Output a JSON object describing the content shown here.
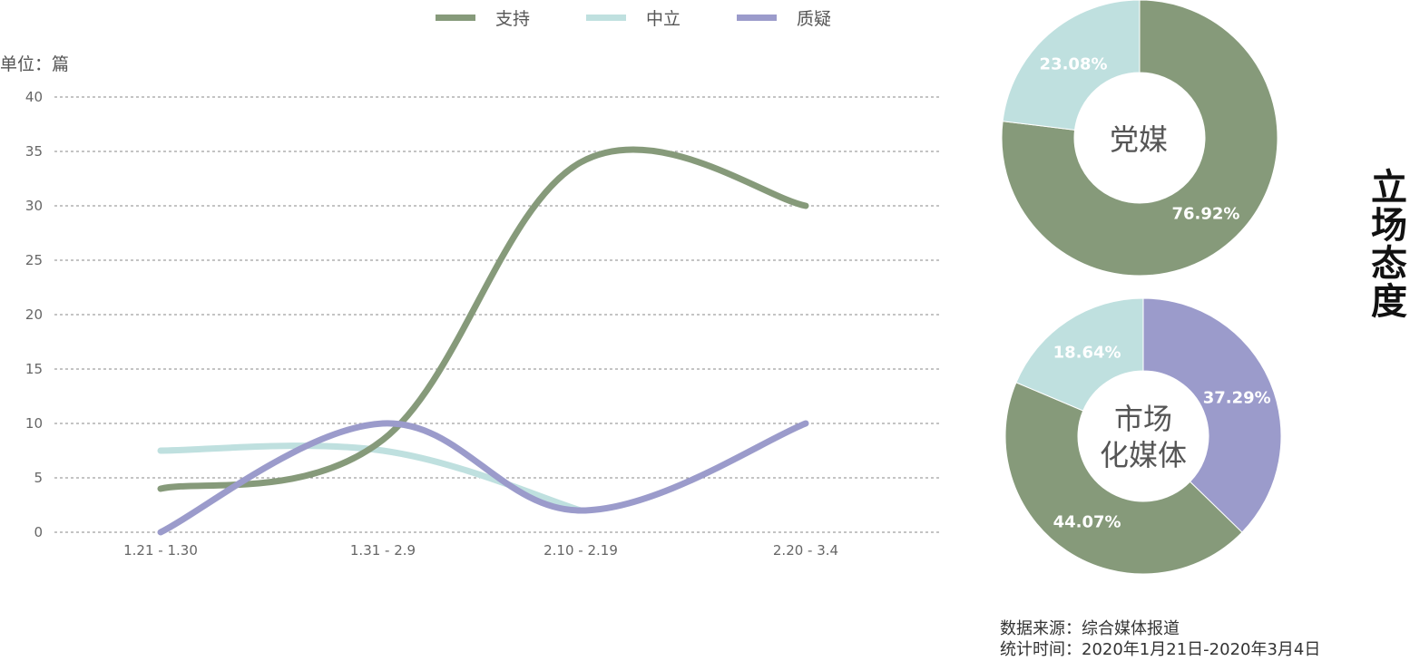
{
  "legend": [
    {
      "label": "支持",
      "color": "#869a7a"
    },
    {
      "label": "中立",
      "color": "#bfe0df"
    },
    {
      "label": "质疑",
      "color": "#9b9bcb"
    }
  ],
  "unit_label": "单位：篇",
  "side_title": "立场态度",
  "source": {
    "line1": "数据来源：综合媒体报道",
    "line2": "统计时间：2020年1月21日-2020年3月4日"
  },
  "chart_data": [
    {
      "type": "line",
      "categories": [
        "1.21 - 1.30",
        "1.31 - 2.9",
        "2.10 - 2.19",
        "2.20 - 3.4"
      ],
      "series": [
        {
          "name": "支持",
          "values": [
            4,
            8.5,
            34,
            30
          ],
          "color": "#869a7a"
        },
        {
          "name": "中立",
          "values": [
            7.5,
            7.5,
            2,
            null
          ],
          "color": "#bfe0df"
        },
        {
          "name": "质疑",
          "values": [
            0,
            10,
            2,
            10
          ],
          "color": "#9b9bcb"
        }
      ],
      "ylim": [
        0,
        40
      ],
      "yticks": [
        0,
        5,
        10,
        15,
        20,
        25,
        30,
        35,
        40
      ],
      "grid": true,
      "legend_position": "top"
    },
    {
      "type": "pie",
      "center_label": "党媒",
      "slices": [
        {
          "name": "支持",
          "value": 76.92,
          "label": "76.92%",
          "color": "#869a7a"
        },
        {
          "name": "中立",
          "value": 23.08,
          "label": "23.08%",
          "color": "#bfe0df"
        }
      ]
    },
    {
      "type": "pie",
      "center_label_lines": [
        "市场",
        "化媒体"
      ],
      "slices": [
        {
          "name": "质疑",
          "value": 37.29,
          "label": "37.29%",
          "color": "#9b9bcb"
        },
        {
          "name": "支持",
          "value": 44.07,
          "label": "44.07%",
          "color": "#869a7a"
        },
        {
          "name": "中立",
          "value": 18.64,
          "label": "18.64%",
          "color": "#bfe0df"
        }
      ]
    }
  ]
}
